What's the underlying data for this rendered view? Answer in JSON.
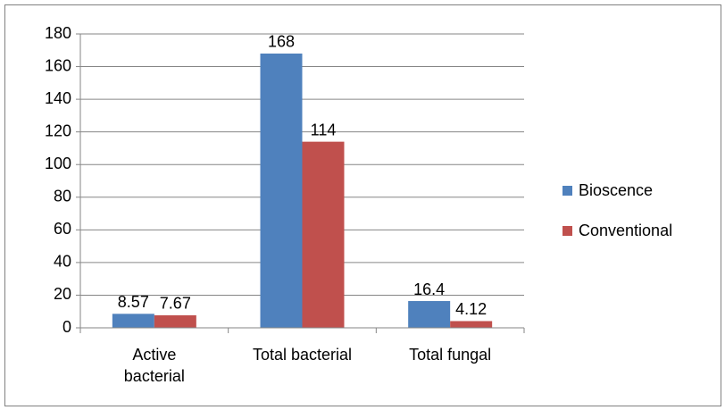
{
  "chart_data": {
    "type": "bar",
    "categories": [
      "Active bacterial",
      "Total bacterial",
      "Total fungal"
    ],
    "series": [
      {
        "name": "Bioscence",
        "color": "#4f81bd",
        "values": [
          8.57,
          168,
          16.4
        ]
      },
      {
        "name": "Conventional",
        "color": "#c0504d",
        "values": [
          7.67,
          114,
          4.12
        ]
      }
    ],
    "ylim": [
      0,
      180
    ],
    "yticks": [
      0,
      20,
      40,
      60,
      80,
      100,
      120,
      140,
      160,
      180
    ],
    "grid": true,
    "legend": "right"
  }
}
